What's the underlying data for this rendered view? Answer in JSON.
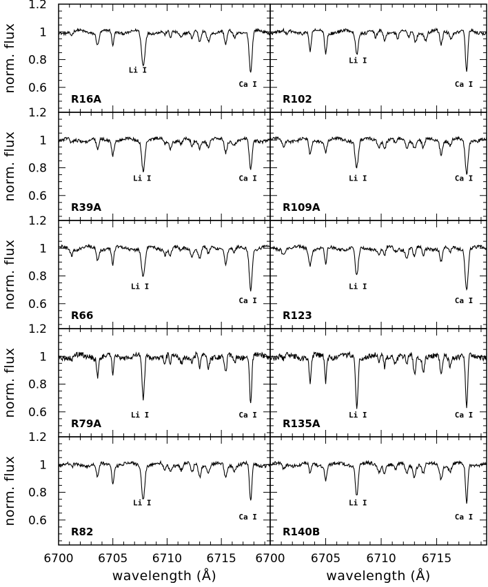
{
  "chart_data": {
    "type": "line",
    "rows": 5,
    "cols": 2,
    "xlabel": "wavelength (Å)",
    "ylabel": "norm. flux",
    "xlim": [
      6700,
      6719.5
    ],
    "ylim": [
      0.42,
      1.2
    ],
    "x_ticks": [
      6700,
      6705,
      6710,
      6715
    ],
    "x_tick_labels": [
      "6700",
      "6705",
      "6710",
      "6715"
    ],
    "x_tick_labels_col2": [
      "6700",
      "6705",
      "6710",
      "6715"
    ],
    "y_ticks": [
      0.6,
      0.8,
      1,
      1.2
    ],
    "y_tick_labels": [
      "0.6",
      "0.8",
      "1",
      "1.2"
    ],
    "line_labels": [
      {
        "text": "Li I",
        "x": 6707.8
      },
      {
        "text": "Ca I",
        "x": 6717.7
      }
    ],
    "panels": [
      {
        "name": "R16A",
        "noise": 0.01,
        "lines": [
          [
            6701.2,
            0.025,
            0.12
          ],
          [
            6703.6,
            0.09,
            0.12
          ],
          [
            6705.0,
            0.1,
            0.1
          ],
          [
            6707.8,
            0.25,
            0.16
          ],
          [
            6709.8,
            0.03,
            0.12
          ],
          [
            6710.3,
            0.05,
            0.1
          ],
          [
            6711.3,
            0.03,
            0.12
          ],
          [
            6712.3,
            0.05,
            0.12
          ],
          [
            6713.0,
            0.08,
            0.12
          ],
          [
            6713.8,
            0.06,
            0.12
          ],
          [
            6715.4,
            0.1,
            0.12
          ],
          [
            6716.2,
            0.04,
            0.12
          ],
          [
            6717.7,
            0.3,
            0.13
          ]
        ],
        "li": {
          "dx": -0.5,
          "y": 0.705
        },
        "ca": {
          "dx": 0,
          "y": 0.605
        }
      },
      {
        "name": "R102",
        "noise": 0.012,
        "lines": [
          [
            6701.5,
            0.03,
            0.12
          ],
          [
            6703.6,
            0.14,
            0.1
          ],
          [
            6705.0,
            0.15,
            0.1
          ],
          [
            6707.8,
            0.16,
            0.12
          ],
          [
            6709.5,
            0.05,
            0.12
          ],
          [
            6710.3,
            0.06,
            0.1
          ],
          [
            6711.5,
            0.04,
            0.1
          ],
          [
            6712.5,
            0.05,
            0.1
          ],
          [
            6713.1,
            0.07,
            0.12
          ],
          [
            6714.0,
            0.05,
            0.12
          ],
          [
            6715.4,
            0.1,
            0.12
          ],
          [
            6716.3,
            0.04,
            0.12
          ],
          [
            6717.7,
            0.3,
            0.11
          ]
        ],
        "li": {
          "dx": 0.1,
          "y": 0.775
        },
        "ca": {
          "dx": 0,
          "y": 0.605
        }
      },
      {
        "name": "R39A",
        "noise": 0.012,
        "lines": [
          [
            6701.2,
            0.03,
            0.12
          ],
          [
            6703.6,
            0.08,
            0.12
          ],
          [
            6705.0,
            0.1,
            0.1
          ],
          [
            6707.8,
            0.21,
            0.14
          ],
          [
            6709.8,
            0.03,
            0.12
          ],
          [
            6710.3,
            0.05,
            0.1
          ],
          [
            6711.3,
            0.03,
            0.12
          ],
          [
            6712.3,
            0.05,
            0.12
          ],
          [
            6713.0,
            0.05,
            0.12
          ],
          [
            6713.8,
            0.05,
            0.12
          ],
          [
            6715.4,
            0.09,
            0.12
          ],
          [
            6716.2,
            0.03,
            0.12
          ],
          [
            6717.7,
            0.22,
            0.13
          ]
        ],
        "li": {
          "dx": -0.1,
          "y": 0.705
        },
        "ca": {
          "dx": 0,
          "y": 0.705
        }
      },
      {
        "name": "R109A",
        "noise": 0.012,
        "lines": [
          [
            6701.2,
            0.05,
            0.12
          ],
          [
            6703.6,
            0.11,
            0.12
          ],
          [
            6705.0,
            0.08,
            0.1
          ],
          [
            6707.8,
            0.19,
            0.14
          ],
          [
            6709.8,
            0.04,
            0.12
          ],
          [
            6710.3,
            0.06,
            0.1
          ],
          [
            6711.3,
            0.03,
            0.12
          ],
          [
            6712.3,
            0.05,
            0.12
          ],
          [
            6713.0,
            0.05,
            0.12
          ],
          [
            6713.8,
            0.06,
            0.12
          ],
          [
            6715.4,
            0.09,
            0.12
          ],
          [
            6716.2,
            0.04,
            0.12
          ],
          [
            6717.7,
            0.24,
            0.13
          ]
        ],
        "li": {
          "dx": 0.1,
          "y": 0.705
        },
        "ca": {
          "dx": 0,
          "y": 0.705
        }
      },
      {
        "name": "R66",
        "noise": 0.012,
        "lines": [
          [
            6701.2,
            0.04,
            0.12
          ],
          [
            6703.6,
            0.09,
            0.12
          ],
          [
            6705.0,
            0.12,
            0.1
          ],
          [
            6707.8,
            0.21,
            0.16
          ],
          [
            6709.8,
            0.04,
            0.12
          ],
          [
            6710.3,
            0.06,
            0.1
          ],
          [
            6711.3,
            0.03,
            0.12
          ],
          [
            6712.3,
            0.05,
            0.12
          ],
          [
            6713.0,
            0.07,
            0.12
          ],
          [
            6713.8,
            0.05,
            0.12
          ],
          [
            6715.4,
            0.1,
            0.12
          ],
          [
            6716.2,
            0.04,
            0.12
          ],
          [
            6717.7,
            0.29,
            0.13
          ]
        ],
        "li": {
          "dx": -0.3,
          "y": 0.705
        },
        "ca": {
          "dx": 0,
          "y": 0.605
        }
      },
      {
        "name": "R123",
        "noise": 0.012,
        "lines": [
          [
            6701.2,
            0.04,
            0.12
          ],
          [
            6703.6,
            0.11,
            0.12
          ],
          [
            6705.0,
            0.12,
            0.1
          ],
          [
            6707.8,
            0.21,
            0.14
          ],
          [
            6709.8,
            0.04,
            0.12
          ],
          [
            6710.3,
            0.06,
            0.1
          ],
          [
            6711.3,
            0.03,
            0.12
          ],
          [
            6712.3,
            0.06,
            0.12
          ],
          [
            6713.0,
            0.07,
            0.12
          ],
          [
            6713.8,
            0.05,
            0.12
          ],
          [
            6715.4,
            0.1,
            0.12
          ],
          [
            6716.2,
            0.04,
            0.12
          ],
          [
            6717.7,
            0.3,
            0.13
          ]
        ],
        "li": {
          "dx": 0.1,
          "y": 0.705
        },
        "ca": {
          "dx": 0,
          "y": 0.605
        }
      },
      {
        "name": "R79A",
        "noise": 0.02,
        "lines": [
          [
            6701.2,
            0.03,
            0.1
          ],
          [
            6703.6,
            0.14,
            0.09
          ],
          [
            6705.0,
            0.13,
            0.08
          ],
          [
            6707.8,
            0.31,
            0.11
          ],
          [
            6709.8,
            0.05,
            0.1
          ],
          [
            6710.3,
            0.06,
            0.08
          ],
          [
            6711.3,
            0.04,
            0.1
          ],
          [
            6712.3,
            0.05,
            0.1
          ],
          [
            6713.0,
            0.09,
            0.1
          ],
          [
            6713.8,
            0.08,
            0.1
          ],
          [
            6715.4,
            0.13,
            0.1
          ],
          [
            6716.2,
            0.05,
            0.1
          ],
          [
            6717.7,
            0.35,
            0.1
          ]
        ],
        "li": {
          "dx": -0.3,
          "y": 0.56
        },
        "ca": {
          "dx": 0,
          "y": 0.56
        }
      },
      {
        "name": "R135A",
        "noise": 0.02,
        "lines": [
          [
            6701.2,
            0.03,
            0.1
          ],
          [
            6703.6,
            0.2,
            0.09
          ],
          [
            6705.0,
            0.18,
            0.08
          ],
          [
            6707.8,
            0.37,
            0.11
          ],
          [
            6709.8,
            0.05,
            0.1
          ],
          [
            6710.3,
            0.08,
            0.08
          ],
          [
            6711.3,
            0.04,
            0.1
          ],
          [
            6712.3,
            0.06,
            0.1
          ],
          [
            6713.0,
            0.14,
            0.1
          ],
          [
            6713.8,
            0.1,
            0.1
          ],
          [
            6715.4,
            0.15,
            0.1
          ],
          [
            6716.2,
            0.06,
            0.1
          ],
          [
            6717.7,
            0.39,
            0.1
          ]
        ],
        "li": {
          "dx": 0.1,
          "y": 0.56
        },
        "ca": {
          "dx": 0,
          "y": 0.56
        }
      },
      {
        "name": "R82",
        "noise": 0.012,
        "lines": [
          [
            6701.2,
            0.03,
            0.12
          ],
          [
            6703.6,
            0.1,
            0.12
          ],
          [
            6705.0,
            0.12,
            0.1
          ],
          [
            6707.8,
            0.24,
            0.14
          ],
          [
            6709.8,
            0.04,
            0.12
          ],
          [
            6710.3,
            0.05,
            0.1
          ],
          [
            6711.3,
            0.04,
            0.12
          ],
          [
            6712.3,
            0.06,
            0.12
          ],
          [
            6713.0,
            0.08,
            0.12
          ],
          [
            6713.8,
            0.06,
            0.12
          ],
          [
            6715.4,
            0.1,
            0.12
          ],
          [
            6716.2,
            0.04,
            0.12
          ],
          [
            6717.7,
            0.27,
            0.11
          ]
        ],
        "li": {
          "dx": -0.1,
          "y": 0.705
        },
        "ca": {
          "dx": 0,
          "y": 0.605
        }
      },
      {
        "name": "R140B",
        "noise": 0.012,
        "lines": [
          [
            6701.2,
            0.03,
            0.12
          ],
          [
            6703.6,
            0.08,
            0.1
          ],
          [
            6705.0,
            0.1,
            0.1
          ],
          [
            6707.8,
            0.22,
            0.12
          ],
          [
            6709.8,
            0.05,
            0.12
          ],
          [
            6710.3,
            0.06,
            0.1
          ],
          [
            6711.3,
            0.04,
            0.12
          ],
          [
            6712.3,
            0.06,
            0.12
          ],
          [
            6713.0,
            0.08,
            0.12
          ],
          [
            6713.8,
            0.07,
            0.12
          ],
          [
            6715.4,
            0.1,
            0.12
          ],
          [
            6716.2,
            0.05,
            0.12
          ],
          [
            6717.7,
            0.28,
            0.1
          ]
        ],
        "li": {
          "dx": 0.1,
          "y": 0.705
        },
        "ca": {
          "dx": 0,
          "y": 0.605
        }
      }
    ]
  }
}
